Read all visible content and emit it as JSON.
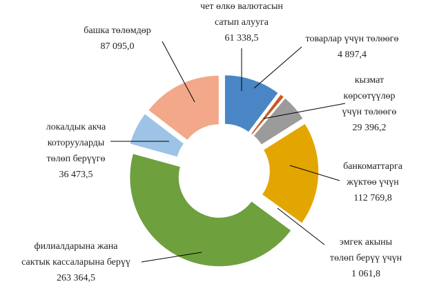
{
  "chart_data": {
    "type": "donut",
    "categories": [
      [
        "чет өлкө валютасын",
        "сатып алууга"
      ],
      [
        "товарлар үчүн төлөөгө"
      ],
      [
        "кызмат",
        "көрсөтүүлөр",
        "үчүн төлөөгө"
      ],
      [
        "банкоматтарга",
        "жүктөө үчүн"
      ],
      [
        "эмгек акыны",
        "төлөп берүү үчүн"
      ],
      [
        "филиалдарына жана",
        "сактык кассаларына берүү"
      ],
      [
        "локалдык акча",
        "которууларды",
        "төлөп берүүгө"
      ],
      [
        "башка төлөмдөр"
      ]
    ],
    "values": [
      61338.5,
      4897.4,
      29396.2,
      112769.8,
      1061.8,
      263364.5,
      36473.5,
      87095.0
    ],
    "value_labels": [
      "61 338,5",
      "4 897,4",
      "29 396,2",
      "112 769,8",
      "1 061,8",
      "263 364,5",
      "36 473,5",
      "87 095,0"
    ],
    "colors": [
      "#4a86c5",
      "#c65a24",
      "#9b9b9b",
      "#e3a600",
      "#4472c4",
      "#6ea03e",
      "#9dc3e6",
      "#f2a889"
    ]
  }
}
